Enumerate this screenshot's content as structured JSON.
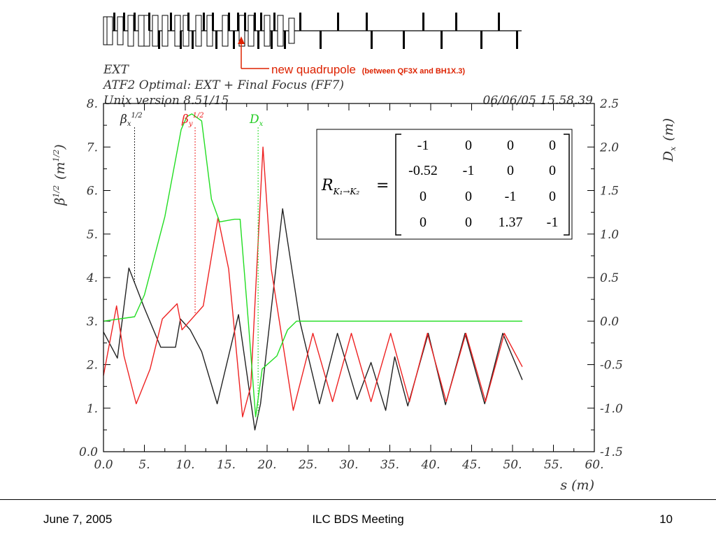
{
  "annotation": {
    "text": "new quadrupole",
    "detail": "(between QF3X and BH1X.3)",
    "color": "#dd2200"
  },
  "header_lines": [
    "EXT",
    "ATF2 Optimal: EXT + Final Focus (FF7)",
    "Unix version 8.51/15"
  ],
  "timestamp": "06/06/05  15.58.39",
  "colors": {
    "beta_x": "#222222",
    "beta_y": "#ee2222",
    "dx": "#22dd22",
    "axes": "#000000"
  },
  "chart_data": {
    "type": "line",
    "xlabel": "s (m)",
    "ylabel_left": {
      "base": "β",
      "sup": "1/2",
      "unit_base": "(m",
      "unit_sup": "1/2",
      "unit_close": ")"
    },
    "ylabel_right": {
      "base": "D",
      "sub": "x",
      "unit": "(m)"
    },
    "xlim": [
      0,
      60
    ],
    "ylim_left": [
      0,
      8
    ],
    "ylim_right": [
      -1.5,
      2.5
    ],
    "x_ticks": [
      "0.0",
      "5.",
      "10.",
      "15.",
      "20.",
      "25.",
      "30.",
      "35.",
      "40.",
      "45.",
      "50.",
      "55.",
      "60."
    ],
    "y_ticks_left": [
      "0.0",
      "1.",
      "2.",
      "3.",
      "4.",
      "5.",
      "6.",
      "7.",
      "8."
    ],
    "y_ticks_right": [
      "-1.5",
      "-1.0",
      "-0.5",
      "0.0",
      "0.5",
      "1.0",
      "1.5",
      "2.0",
      "2.5"
    ],
    "series": [
      {
        "name": "βx 1/2",
        "label_base": "β",
        "label_sub": "x",
        "label_sup": "1/2",
        "axis": "left",
        "points": [
          [
            0,
            2.75
          ],
          [
            1.7,
            2.15
          ],
          [
            3.1,
            4.22
          ],
          [
            5.0,
            3.3
          ],
          [
            7.0,
            2.4
          ],
          [
            8.8,
            2.4
          ],
          [
            9.4,
            3.05
          ],
          [
            10.6,
            2.8
          ],
          [
            12.0,
            2.3
          ],
          [
            13.9,
            1.1
          ],
          [
            16.5,
            3.15
          ],
          [
            18.5,
            0.5
          ],
          [
            19.2,
            1.1
          ],
          [
            21.9,
            5.58
          ],
          [
            24.0,
            3.0
          ],
          [
            26.4,
            1.1
          ],
          [
            28.6,
            2.72
          ],
          [
            31.0,
            1.2
          ],
          [
            32.7,
            2.05
          ],
          [
            34.5,
            0.95
          ],
          [
            35.6,
            2.18
          ],
          [
            37.2,
            1.05
          ],
          [
            39.7,
            2.72
          ],
          [
            41.8,
            1.08
          ],
          [
            44.2,
            2.72
          ],
          [
            46.6,
            1.1
          ],
          [
            48.8,
            2.72
          ],
          [
            51.2,
            1.65
          ]
        ]
      },
      {
        "name": "βy 1/2",
        "label_base": "β",
        "label_sub": "y",
        "label_sup": "1/2",
        "axis": "left",
        "points": [
          [
            0,
            1.75
          ],
          [
            1.6,
            3.35
          ],
          [
            2.5,
            2.2
          ],
          [
            4.0,
            1.1
          ],
          [
            5.7,
            1.9
          ],
          [
            7.2,
            3.05
          ],
          [
            9.0,
            3.4
          ],
          [
            9.6,
            2.8
          ],
          [
            12.2,
            3.35
          ],
          [
            14.0,
            5.38
          ],
          [
            15.3,
            4.2
          ],
          [
            17.0,
            0.8
          ],
          [
            18.0,
            1.5
          ],
          [
            19.5,
            7.0
          ],
          [
            20.5,
            4.2
          ],
          [
            23.2,
            0.95
          ],
          [
            25.6,
            2.72
          ],
          [
            28.0,
            1.15
          ],
          [
            30.3,
            2.72
          ],
          [
            32.7,
            1.15
          ],
          [
            35.1,
            2.72
          ],
          [
            37.4,
            1.15
          ],
          [
            39.6,
            2.72
          ],
          [
            41.9,
            1.15
          ],
          [
            44.3,
            2.72
          ],
          [
            46.7,
            1.15
          ],
          [
            49.0,
            2.72
          ],
          [
            51.2,
            1.95
          ]
        ]
      },
      {
        "name": "Dx",
        "label_base": "D",
        "label_sub": "x",
        "axis": "right",
        "points": [
          [
            0,
            0.0
          ],
          [
            3.8,
            0.05
          ],
          [
            5.0,
            0.3
          ],
          [
            7.5,
            1.2
          ],
          [
            9.5,
            2.2
          ],
          [
            10.2,
            2.35
          ],
          [
            10.8,
            2.38
          ],
          [
            12.0,
            2.3
          ],
          [
            13.2,
            1.4
          ],
          [
            14.2,
            1.14
          ],
          [
            16.0,
            1.17
          ],
          [
            16.7,
            1.17
          ],
          [
            17.7,
            0.0
          ],
          [
            18.6,
            -1.1
          ],
          [
            19.4,
            -0.55
          ],
          [
            21.2,
            -0.4
          ],
          [
            22.5,
            -0.1
          ],
          [
            23.6,
            -0.0
          ],
          [
            24.5,
            0.0
          ],
          [
            51.2,
            0.0
          ]
        ]
      }
    ],
    "marker_lines": [
      {
        "series": "βx 1/2",
        "x": 3.8
      },
      {
        "series": "βy 1/2",
        "x": 11.2
      },
      {
        "series": "Dx",
        "x": 18.9
      }
    ],
    "matrix": {
      "symbol": "R",
      "subscript": "K₁→K₂",
      "rows": [
        [
          "-1",
          "0",
          "0",
          "0"
        ],
        [
          "-0.52",
          "-1",
          "0",
          "0"
        ],
        [
          "0",
          "0",
          "-1",
          "0"
        ],
        [
          "0",
          "0",
          "1.37",
          "-1"
        ]
      ]
    }
  },
  "footer": {
    "date": "June 7, 2005",
    "meeting": "ILC BDS Meeting",
    "page": "10"
  }
}
